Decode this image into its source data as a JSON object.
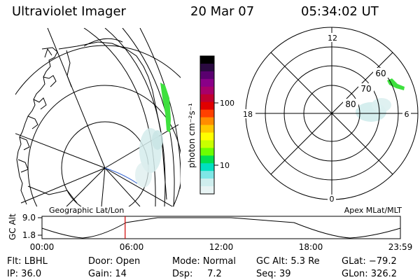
{
  "header": {
    "instrument": "Ultraviolet Imager",
    "date": "20 Mar 07",
    "time": "05:34:02 UT"
  },
  "colorbar": {
    "label": "photon cm⁻²s⁻¹",
    "ticks": [
      "100",
      "10"
    ],
    "colors": [
      "#000000",
      "#2a0a40",
      "#5a0070",
      "#8a0088",
      "#a8006a",
      "#c00030",
      "#e00000",
      "#ff4000",
      "#ff8c00",
      "#ffc800",
      "#ffff00",
      "#c8ff00",
      "#6cff00",
      "#00e050",
      "#00e0c0",
      "#7fe6e6",
      "#cfeeee",
      "#e8f4f4"
    ]
  },
  "panels": {
    "left_label": "Geographic Lat/Lon",
    "right_label": "Apex MLat/MLT",
    "mlt_labels": {
      "top": "12",
      "left": "18",
      "right": "6",
      "bottom": "0"
    },
    "lat_labels": [
      "60",
      "70",
      "80"
    ]
  },
  "altitude_plot": {
    "axis_label": "GC Alt",
    "y_ticks": [
      "9.0",
      "1.8"
    ],
    "x_ticks": [
      "00:00",
      "06:00",
      "12:00",
      "18:00",
      "23:59"
    ],
    "marker_time_hours": 5.567
  },
  "footer": {
    "flt": "Flt: LBHL",
    "ip": "IP: 36.0",
    "door": "Door: Open",
    "gain": "Gain: 14",
    "mode": "Mode: Normal",
    "dsp": "Dsp:     7.2",
    "gc_alt": "GC Alt: 5.3 Re",
    "seq": "Seq: 39",
    "glat": "GLat: −79.2",
    "glon": "GLon: 326.2"
  }
}
